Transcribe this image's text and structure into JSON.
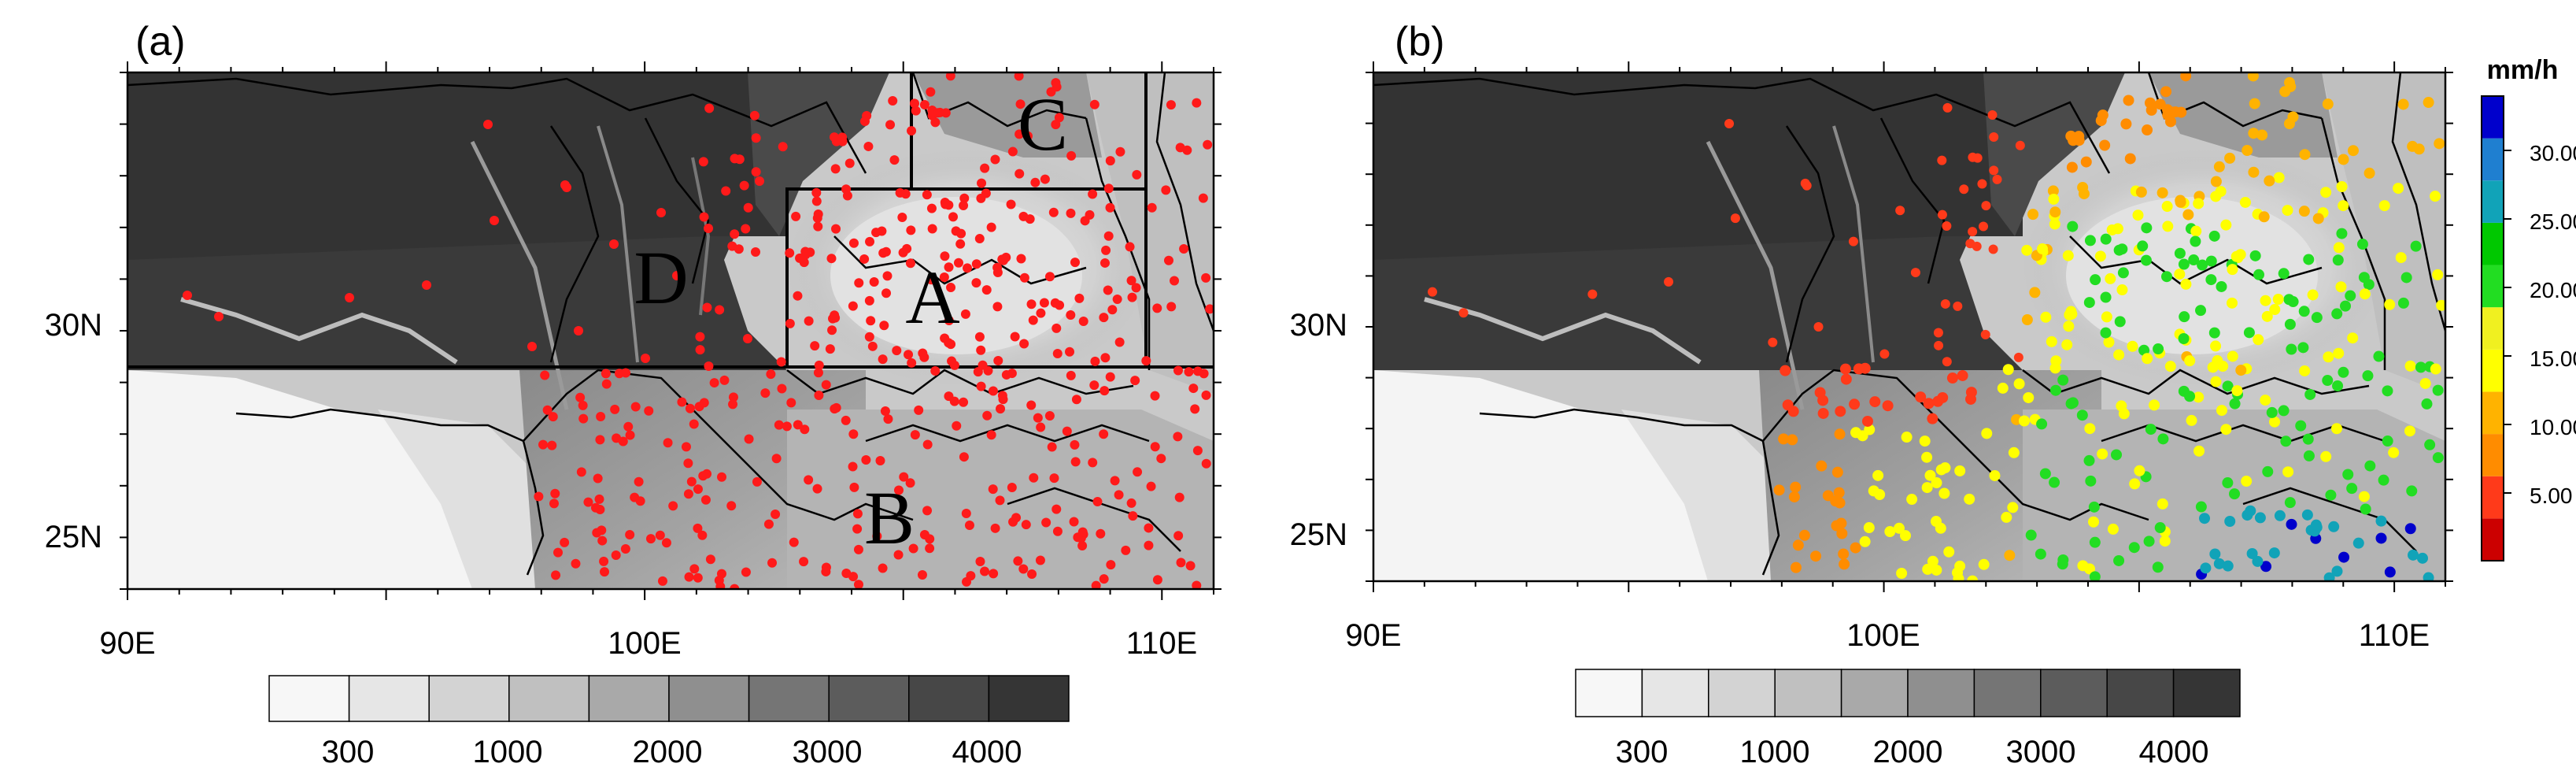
{
  "panels": [
    {
      "label": "(a)"
    },
    {
      "label": "(b)"
    }
  ],
  "axes": {
    "lon_range": [
      90,
      111
    ],
    "lat_range": [
      24,
      34
    ],
    "x_ticks": [
      "90E",
      "100E",
      "110E"
    ],
    "y_ticks": [
      "30N",
      "25N"
    ]
  },
  "regions": [
    "A",
    "B",
    "C",
    "D"
  ],
  "elevation_colorbar": {
    "tick_labels": [
      "300",
      "1000",
      "2000",
      "3000",
      "4000"
    ],
    "colors": [
      "#f7f7f7",
      "#e6e6e6",
      "#d3d3d3",
      "#c0c0c0",
      "#a9a9a9",
      "#8f8f8f",
      "#757575",
      "#5c5c5c",
      "#474747",
      "#353535"
    ]
  },
  "rain_colorbar": {
    "unit": "mm/h",
    "tick_labels": [
      "5.00",
      "10.00",
      "15.00",
      "20.00",
      "25.00",
      "30.00"
    ],
    "colors": [
      "#cc0000",
      "#ff3a1a",
      "#ff8c00",
      "#ffb300",
      "#ffff00",
      "#f0f020",
      "#22dd22",
      "#00c800",
      "#11a3b8",
      "#1f7fd0",
      "#0000cc"
    ]
  },
  "station_color_a": "#ff1a1a"
}
